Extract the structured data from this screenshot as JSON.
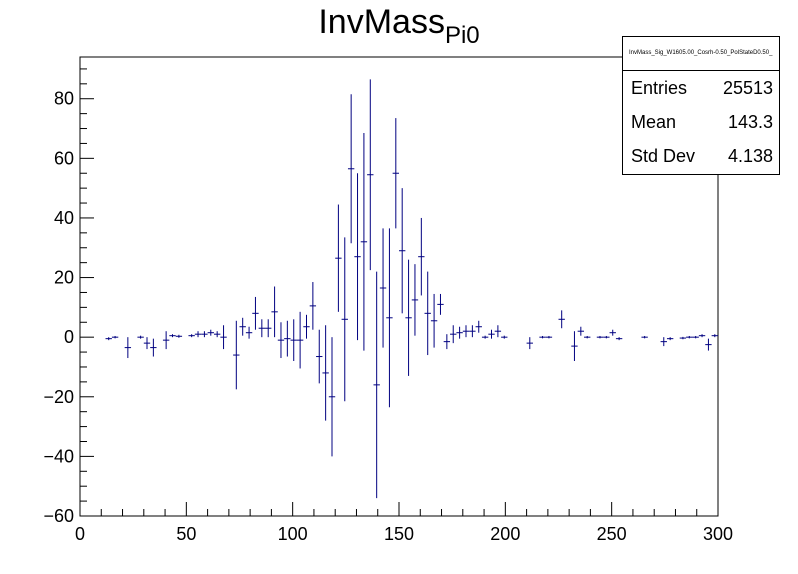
{
  "chart_data": {
    "type": "scatter",
    "title": "InvMass",
    "title_sub": "Pi0",
    "xlabel": "",
    "ylabel": "",
    "xlim": [
      0,
      300
    ],
    "ylim": [
      -60,
      94
    ],
    "x_ticks": [
      0,
      50,
      100,
      150,
      200,
      250,
      300
    ],
    "y_ticks": [
      -60,
      -40,
      -20,
      0,
      20,
      40,
      60,
      80
    ],
    "bin_width": 3,
    "series_color": "#000080",
    "points": [
      {
        "x": 13.5,
        "y": -0.5,
        "err": 0.5
      },
      {
        "x": 16.5,
        "y": 0.0,
        "err": 0.4
      },
      {
        "x": 22.5,
        "y": -3.5,
        "err": 3.5
      },
      {
        "x": 28.5,
        "y": 0.0,
        "err": 0.5
      },
      {
        "x": 31.5,
        "y": -2.0,
        "err": 2.0
      },
      {
        "x": 34.5,
        "y": -3.5,
        "err": 3.0
      },
      {
        "x": 40.5,
        "y": -1.0,
        "err": 3.0
      },
      {
        "x": 43.5,
        "y": 0.5,
        "err": 0.5
      },
      {
        "x": 46.5,
        "y": 0.3,
        "err": 0.5
      },
      {
        "x": 52.5,
        "y": 0.5,
        "err": 0.5
      },
      {
        "x": 55.5,
        "y": 1.0,
        "err": 1.0
      },
      {
        "x": 58.5,
        "y": 1.0,
        "err": 1.0
      },
      {
        "x": 61.5,
        "y": 1.5,
        "err": 1.0
      },
      {
        "x": 64.5,
        "y": 1.0,
        "err": 1.0
      },
      {
        "x": 67.5,
        "y": 0.0,
        "err": 4.0
      },
      {
        "x": 73.5,
        "y": -6.0,
        "err": 11.5
      },
      {
        "x": 76.5,
        "y": 3.5,
        "err": 3.0
      },
      {
        "x": 79.5,
        "y": 1.5,
        "err": 2.0
      },
      {
        "x": 82.5,
        "y": 8.0,
        "err": 5.5
      },
      {
        "x": 85.5,
        "y": 3.0,
        "err": 3.0
      },
      {
        "x": 88.5,
        "y": 3.0,
        "err": 3.0
      },
      {
        "x": 91.5,
        "y": 8.5,
        "err": 8.5
      },
      {
        "x": 94.5,
        "y": -1.0,
        "err": 6.0
      },
      {
        "x": 97.5,
        "y": -0.5,
        "err": 6.0
      },
      {
        "x": 100.5,
        "y": -1.0,
        "err": 7.0
      },
      {
        "x": 103.5,
        "y": -1.0,
        "err": 9.5
      },
      {
        "x": 106.5,
        "y": 3.5,
        "err": 4.0
      },
      {
        "x": 109.5,
        "y": 10.5,
        "err": 8.0
      },
      {
        "x": 112.5,
        "y": -6.5,
        "err": 9.0
      },
      {
        "x": 115.5,
        "y": -12.0,
        "err": 16.0
      },
      {
        "x": 118.5,
        "y": -20.0,
        "err": 20.0
      },
      {
        "x": 121.5,
        "y": 26.5,
        "err": 18.0
      },
      {
        "x": 124.5,
        "y": 6.0,
        "err": 27.5
      },
      {
        "x": 127.5,
        "y": 56.5,
        "err": 25.0
      },
      {
        "x": 130.5,
        "y": 27.0,
        "err": 28.0
      },
      {
        "x": 133.5,
        "y": 32.0,
        "err": 36.5
      },
      {
        "x": 136.5,
        "y": 54.5,
        "err": 32.0
      },
      {
        "x": 139.5,
        "y": -16.0,
        "err": 38.0
      },
      {
        "x": 142.5,
        "y": 16.5,
        "err": 20.0
      },
      {
        "x": 145.5,
        "y": 6.5,
        "err": 30.0
      },
      {
        "x": 148.5,
        "y": 55.0,
        "err": 18.5
      },
      {
        "x": 151.5,
        "y": 29.0,
        "err": 21.0
      },
      {
        "x": 154.5,
        "y": 6.5,
        "err": 19.5
      },
      {
        "x": 157.5,
        "y": 12.5,
        "err": 12.0
      },
      {
        "x": 160.5,
        "y": 27.0,
        "err": 13.0
      },
      {
        "x": 163.5,
        "y": 8.0,
        "err": 14.0
      },
      {
        "x": 166.5,
        "y": 5.5,
        "err": 9.0
      },
      {
        "x": 169.5,
        "y": 11.0,
        "err": 3.5
      },
      {
        "x": 172.5,
        "y": -1.5,
        "err": 2.5
      },
      {
        "x": 175.5,
        "y": 1.0,
        "err": 3.0
      },
      {
        "x": 178.5,
        "y": 1.5,
        "err": 2.0
      },
      {
        "x": 181.5,
        "y": 2.0,
        "err": 2.0
      },
      {
        "x": 184.5,
        "y": 2.0,
        "err": 2.0
      },
      {
        "x": 187.5,
        "y": 3.5,
        "err": 2.0
      },
      {
        "x": 190.5,
        "y": 0.0,
        "err": 0.5
      },
      {
        "x": 193.5,
        "y": 1.0,
        "err": 1.5
      },
      {
        "x": 196.5,
        "y": 2.0,
        "err": 2.0
      },
      {
        "x": 199.5,
        "y": 0.0,
        "err": 0.5
      },
      {
        "x": 211.5,
        "y": -2.0,
        "err": 2.0
      },
      {
        "x": 217.5,
        "y": 0.0,
        "err": 0.4
      },
      {
        "x": 220.5,
        "y": 0.0,
        "err": 0.4
      },
      {
        "x": 226.5,
        "y": 6.0,
        "err": 3.0
      },
      {
        "x": 232.5,
        "y": -3.0,
        "err": 5.0
      },
      {
        "x": 235.5,
        "y": 2.0,
        "err": 1.5
      },
      {
        "x": 238.5,
        "y": 0.0,
        "err": 0.4
      },
      {
        "x": 244.5,
        "y": 0.0,
        "err": 0.4
      },
      {
        "x": 247.5,
        "y": 0.0,
        "err": 0.4
      },
      {
        "x": 250.5,
        "y": 1.5,
        "err": 1.0
      },
      {
        "x": 253.5,
        "y": -0.5,
        "err": 0.5
      },
      {
        "x": 265.5,
        "y": 0.0,
        "err": 0.4
      },
      {
        "x": 274.5,
        "y": -1.5,
        "err": 1.5
      },
      {
        "x": 277.5,
        "y": -0.5,
        "err": 0.5
      },
      {
        "x": 283.5,
        "y": -0.3,
        "err": 0.4
      },
      {
        "x": 286.5,
        "y": 0.0,
        "err": 0.4
      },
      {
        "x": 289.5,
        "y": 0.0,
        "err": 0.4
      },
      {
        "x": 292.5,
        "y": 0.5,
        "err": 0.5
      },
      {
        "x": 295.5,
        "y": -2.5,
        "err": 2.0
      },
      {
        "x": 298.5,
        "y": 0.5,
        "err": 0.5
      }
    ]
  },
  "stats": {
    "name": "InvMass_Sig_W1605.00_Cosrh-0.50_PolStateD0.50_",
    "rows": [
      {
        "label": "Entries",
        "value": "25513"
      },
      {
        "label": "Mean",
        "value": "143.3"
      },
      {
        "label": "Std Dev",
        "value": "4.138"
      }
    ]
  }
}
